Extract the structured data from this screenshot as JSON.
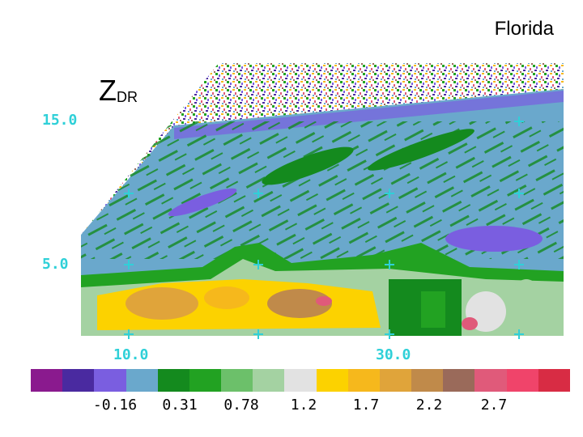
{
  "title": "Florida",
  "variable": {
    "main": "Z",
    "sub": "DR"
  },
  "chart_data": {
    "type": "heatmap",
    "title": "Florida",
    "y_tick_labels": [
      "15.0",
      "5.0"
    ],
    "x_tick_labels": [
      "10.0",
      "30.0"
    ],
    "colorbar": {
      "colors": [
        "#8a1a8e",
        "#4a2aa0",
        "#7a5ee0",
        "#6aa8cc",
        "#148a1e",
        "#22a222",
        "#6cc06a",
        "#a4d2a2",
        "#e2e2e2",
        "#fcd200",
        "#f6b81c",
        "#e0a43a",
        "#c08a4a",
        "#9a6a5a",
        "#e05a7a",
        "#f0446a",
        "#d82c44"
      ],
      "tick_labels": [
        "-0.16",
        "0.31",
        "0.78",
        "1.2",
        "1.7",
        "2.2",
        "2.7"
      ]
    }
  }
}
